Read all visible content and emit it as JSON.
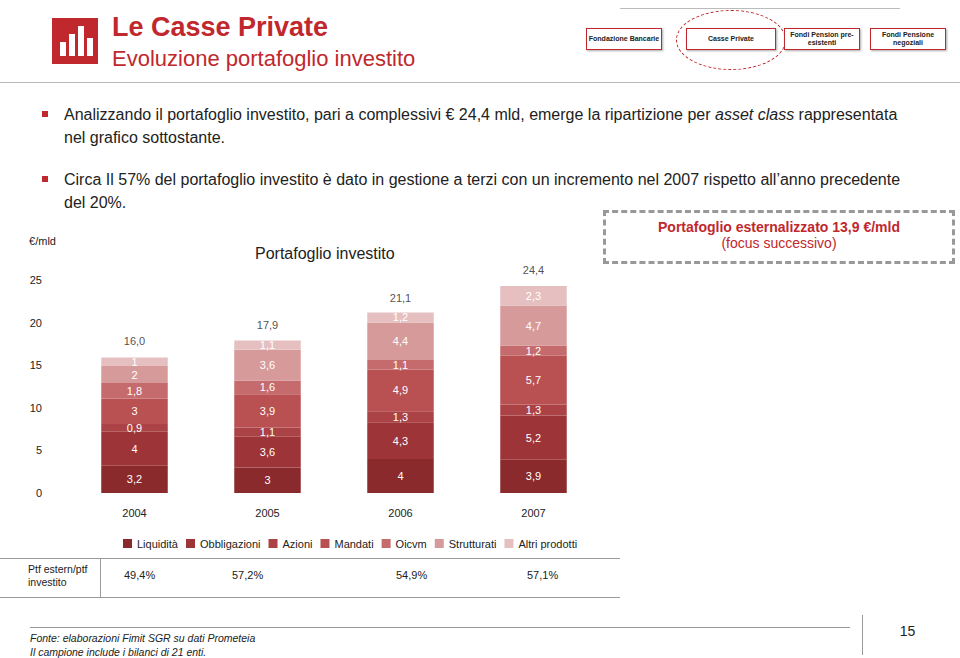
{
  "header": {
    "title": "Le Casse Private",
    "subtitle": "Evoluzione portafoglio investito",
    "breadcrumb": [
      "Fondazione Bancarie",
      "Casse Private",
      "Fondi Pension pre- esistenti",
      "Fondi Pensione negoziali"
    ]
  },
  "bullets": [
    {
      "text_before": "Analizzando il portafoglio investito, pari a complessivi € 24,4 mld, emerge la ripartizione per ",
      "italic": "asset class",
      "text_after": " rappresentata nel grafico sottostante."
    },
    {
      "text_before": "Circa Il 57% del portafoglio investito è dato in gestione a terzi con un incremento nel 2007 rispetto all’anno precedente del 20%.",
      "italic": "",
      "text_after": ""
    }
  ],
  "callout": {
    "line1": "Portafoglio esternalizzato 13,9 €/mld",
    "line2": "(focus successivo)"
  },
  "chart_data": {
    "type": "bar",
    "title": "Portafoglio investito",
    "y_label": "€/mld",
    "stacked": true,
    "data_labels": true,
    "grid": false,
    "legend": "bottom",
    "categories": [
      "2004",
      "2005",
      "2006",
      "2007"
    ],
    "ylim": [
      0,
      25
    ],
    "yticks": [
      0,
      5,
      10,
      15,
      20,
      25
    ],
    "series": [
      {
        "name": "Liquidità",
        "color": "#8a2a2c",
        "values": [
          3.2,
          3,
          4,
          3.9
        ],
        "value_labels": [
          "3,2",
          "3",
          "4",
          "3,9"
        ]
      },
      {
        "name": "Obbligazioni",
        "color": "#9d3437",
        "values": [
          4,
          3.6,
          4.3,
          5.2
        ],
        "value_labels": [
          "4",
          "3,6",
          "4,3",
          "5,2"
        ]
      },
      {
        "name": "Azioni",
        "color": "#ab4245",
        "values": [
          0.9,
          1.1,
          1.3,
          1.3
        ],
        "value_labels": [
          "0,9",
          "1,1",
          "1,3",
          "1,3"
        ]
      },
      {
        "name": "Mandati",
        "color": "#b95052",
        "values": [
          3,
          3.9,
          4.9,
          5.7
        ],
        "value_labels": [
          "3",
          "3,9",
          "4,9",
          "5,7"
        ]
      },
      {
        "name": "Oicvm",
        "color": "#c56b6d",
        "values": [
          1.8,
          1.6,
          1.1,
          1.2
        ],
        "value_labels": [
          "1,8",
          "1,6",
          "1,1",
          "1,2"
        ]
      },
      {
        "name": "Strutturati",
        "color": "#d79a9b",
        "values": [
          2,
          3.6,
          4.4,
          4.7
        ],
        "value_labels": [
          "2",
          "3,6",
          "4,4",
          "4,7"
        ]
      },
      {
        "name": "Altri prodotti",
        "color": "#e6c0c0",
        "values": [
          1,
          1.1,
          1.2,
          2.3
        ],
        "value_labels": [
          "1",
          "1,1",
          "1,2",
          "2,3"
        ]
      }
    ],
    "totals": [
      16.0,
      17.9,
      21.1,
      24.4
    ],
    "total_labels": [
      "16,0",
      "17,9",
      "21,1",
      "24,4"
    ]
  },
  "ratio_row": {
    "label": "Ptf estern/ptf investito",
    "cells": [
      "49,4%",
      "57,2%",
      "54,9%",
      "57,1%"
    ]
  },
  "footer": {
    "lines": [
      "Fonte: elaborazioni Fimit SGR su dati Prometeia",
      "Il campione include i bilanci di 21 enti."
    ]
  },
  "page_number": "15"
}
